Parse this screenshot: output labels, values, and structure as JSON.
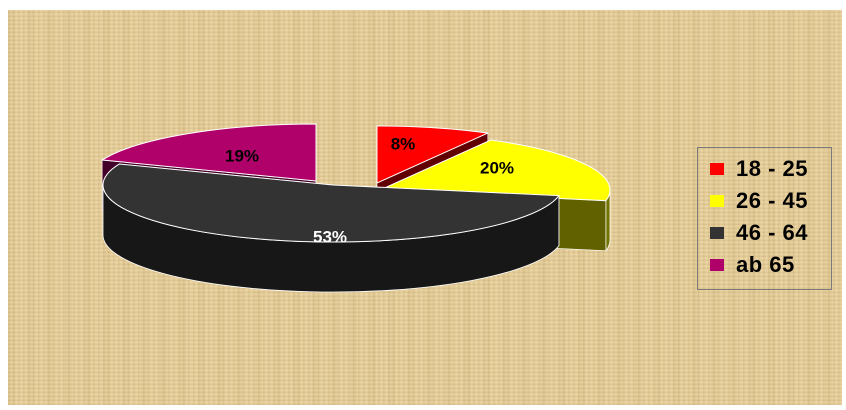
{
  "chart_data": {
    "type": "pie",
    "categories": [
      "18 - 25",
      "26 - 45",
      "46 - 64",
      "ab 65"
    ],
    "values": [
      8,
      20,
      53,
      19
    ],
    "data_labels": [
      "8%",
      "20%",
      "53%",
      "19%"
    ],
    "colors": [
      "#ff0000",
      "#ffff00",
      "#333333",
      "#b0006a"
    ],
    "three_d": true,
    "exploded": true,
    "legend_position": "right"
  }
}
